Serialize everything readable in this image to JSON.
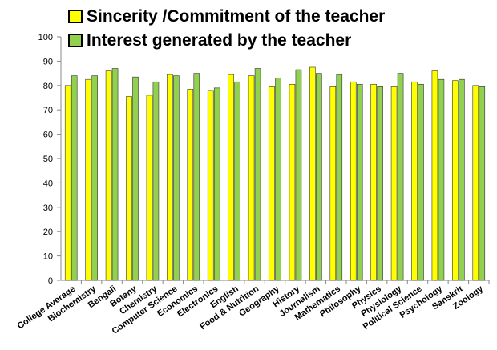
{
  "chart_data": {
    "type": "bar",
    "categories": [
      "College Average",
      "Biochemistry",
      "Bengali",
      "Botany",
      "Chemistry",
      "Computer Science",
      "Economics",
      "Electronics",
      "English",
      "Food & Nutrition",
      "Geography",
      "History",
      "Journalism",
      "Mathematics",
      "Philosophy",
      "Physics",
      "Physiology",
      "Political Science",
      "Psychology",
      "Sanskrit",
      "Zoology"
    ],
    "series": [
      {
        "name": "Sincerity /Commitment of the teacher",
        "color": "#ffff00",
        "values": [
          80,
          82.5,
          86,
          75.5,
          76,
          84.5,
          78.5,
          78,
          84.5,
          84,
          79.5,
          80.5,
          87.5,
          79.5,
          81.5,
          80.5,
          79.5,
          81.5,
          86,
          82,
          80
        ]
      },
      {
        "name": "Interest generated by the teacher",
        "color": "#92d050",
        "values": [
          84,
          84,
          87,
          83.5,
          81.5,
          84,
          85,
          79,
          81.5,
          87,
          83,
          86.5,
          85,
          84.5,
          80.5,
          79.5,
          85,
          80.5,
          82.5,
          82.5,
          79.5
        ]
      }
    ],
    "ylim": [
      0,
      100
    ],
    "yticks": [
      0,
      10,
      20,
      30,
      40,
      50,
      60,
      70,
      80,
      90,
      100
    ],
    "grid": false,
    "legend_position": "top"
  }
}
